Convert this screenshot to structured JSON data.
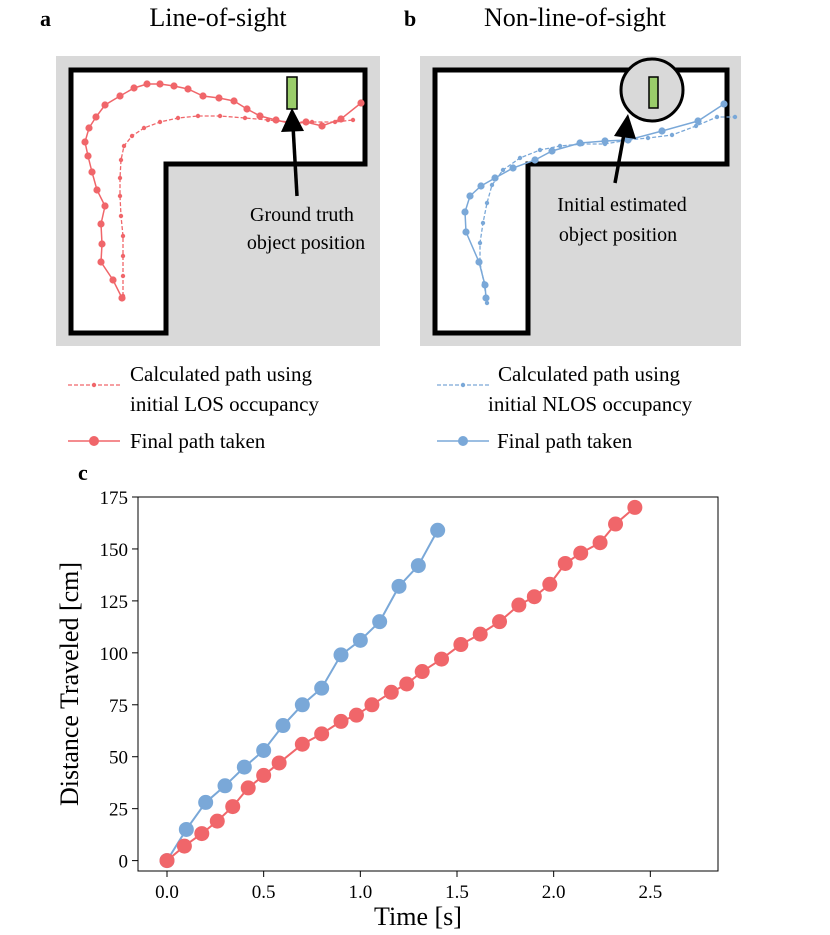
{
  "panel_a": {
    "letter": "a",
    "title": "Line-of-sight",
    "annotation_line1": "Ground truth",
    "annotation_line2": "object position",
    "legend": {
      "calculated_line1": "Calculated path using",
      "calculated_line2": "initial LOS occupancy",
      "final": "Final path taken"
    }
  },
  "panel_b": {
    "letter": "b",
    "title": "Non-line-of-sight",
    "annotation_line1": "Initial estimated",
    "annotation_line2": "object position",
    "legend": {
      "calculated_line1": "Calculated path using",
      "calculated_line2": "initial NLOS occupancy",
      "final": "Final path taken"
    }
  },
  "colors": {
    "red": "#f0666a",
    "blue": "#7aa8d8",
    "floor": "#d9d9d9",
    "object": "#9acd6a"
  },
  "panel_c": {
    "letter": "c"
  },
  "chart_data": {
    "type": "line",
    "xlabel": "Time [s]",
    "ylabel": "Distance Traveled [cm]",
    "xlim": [
      -0.15,
      2.85
    ],
    "ylim": [
      -5,
      175
    ],
    "xticks": [
      0.0,
      0.5,
      1.0,
      1.5,
      2.0,
      2.5
    ],
    "xtick_labels": [
      "0.0",
      "0.5",
      "1.0",
      "1.5",
      "2.0",
      "2.5"
    ],
    "yticks": [
      0,
      25,
      50,
      75,
      100,
      125,
      150,
      175
    ],
    "ytick_labels": [
      "0",
      "25",
      "50",
      "75",
      "100",
      "125",
      "150",
      "175"
    ],
    "grid": false,
    "series": [
      {
        "color": "#7aa8d8",
        "x": [
          0.0,
          0.1,
          0.2,
          0.3,
          0.4,
          0.5,
          0.6,
          0.7,
          0.8,
          0.9,
          1.0,
          1.1,
          1.2,
          1.3,
          1.4
        ],
        "y": [
          0,
          15,
          28,
          36,
          45,
          53,
          65,
          75,
          83,
          99,
          106,
          115,
          132,
          142,
          159
        ]
      },
      {
        "color": "#f0666a",
        "x": [
          0.0,
          0.09,
          0.18,
          0.26,
          0.34,
          0.42,
          0.5,
          0.58,
          0.7,
          0.8,
          0.9,
          0.98,
          1.06,
          1.16,
          1.24,
          1.32,
          1.42,
          1.52,
          1.62,
          1.72,
          1.82,
          1.9,
          1.98,
          2.06,
          2.14,
          2.24,
          2.32,
          2.42
        ],
        "y": [
          0,
          7,
          13,
          19,
          26,
          35,
          41,
          47,
          56,
          61,
          67,
          70,
          75,
          81,
          85,
          91,
          97,
          104,
          109,
          115,
          123,
          127,
          133,
          143,
          148,
          153,
          162,
          170
        ]
      }
    ]
  }
}
